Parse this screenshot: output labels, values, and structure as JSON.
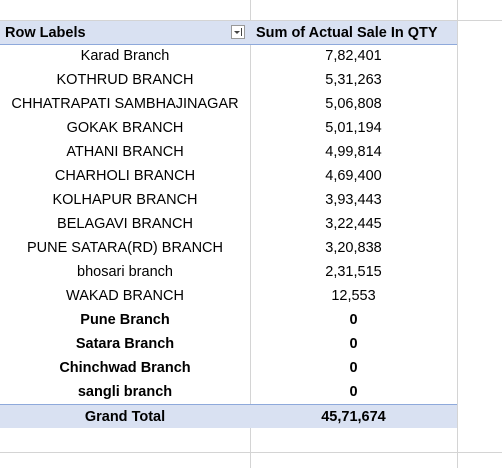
{
  "table": {
    "header": [
      "Row Labels",
      "Sum of Actual Sale In QTY"
    ],
    "rows": [
      {
        "label": "Karad Branch",
        "value": "7,82,401",
        "bold": false
      },
      {
        "label": "KOTHRUD BRANCH",
        "value": "5,31,263",
        "bold": false
      },
      {
        "label": "CHHATRAPATI SAMBHAJINAGAR",
        "value": "5,06,808",
        "bold": false
      },
      {
        "label": "GOKAK BRANCH",
        "value": "5,01,194",
        "bold": false
      },
      {
        "label": "ATHANI BRANCH",
        "value": "4,99,814",
        "bold": false
      },
      {
        "label": "CHARHOLI BRANCH",
        "value": "4,69,400",
        "bold": false
      },
      {
        "label": "KOLHAPUR BRANCH",
        "value": "3,93,443",
        "bold": false
      },
      {
        "label": "BELAGAVI BRANCH",
        "value": "3,22,445",
        "bold": false
      },
      {
        "label": "PUNE SATARA(RD) BRANCH",
        "value": "3,20,838",
        "bold": false
      },
      {
        "label": "bhosari branch",
        "value": "2,31,515",
        "bold": false
      },
      {
        "label": "WAKAD BRANCH",
        "value": "12,553",
        "bold": false
      },
      {
        "label": "Pune Branch",
        "value": "0",
        "bold": true
      },
      {
        "label": "Satara Branch",
        "value": "0",
        "bold": true
      },
      {
        "label": "Chinchwad Branch",
        "value": "0",
        "bold": true
      },
      {
        "label": "sangli branch",
        "value": "0",
        "bold": true
      }
    ],
    "total": {
      "label": "Grand Total",
      "value": "45,71,674"
    }
  }
}
